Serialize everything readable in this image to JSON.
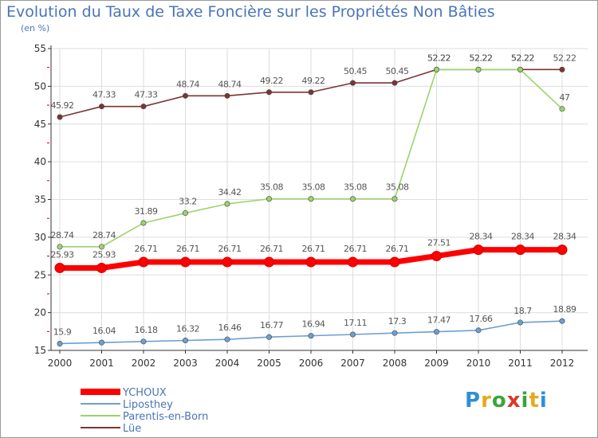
{
  "title": "Evolution du Taux de Taxe Foncière sur les Propriétés Non Bâties",
  "unit": "(en %)",
  "logo": {
    "text": "Proxiti",
    "letters": [
      "P",
      "r",
      "o",
      "x",
      "i",
      "t",
      "i"
    ],
    "colors": [
      "#2e8fd6",
      "#e8a81c",
      "#3aa53a",
      "#d8392b",
      "#3aa53a",
      "#e8a81c",
      "#2e8fd6"
    ]
  },
  "chart_data": {
    "type": "line",
    "title": "Evolution du Taux de Taxe Foncière sur les Propriétés Non Bâties",
    "ylabel": "(en %)",
    "x": [
      "2000",
      "2001",
      "2002",
      "2003",
      "2004",
      "2005",
      "2006",
      "2007",
      "2008",
      "2009",
      "2010",
      "2011",
      "2012"
    ],
    "ylim": [
      15,
      55
    ],
    "yticks": [
      15,
      20,
      25,
      30,
      35,
      40,
      45,
      50,
      55
    ],
    "grid": true,
    "legend_position": "bottom-left",
    "series": [
      {
        "name": "YCHOUX",
        "color": "#ff0000",
        "values": [
          25.93,
          25.93,
          26.71,
          26.71,
          26.71,
          26.71,
          26.71,
          26.71,
          26.71,
          27.51,
          28.34,
          28.34,
          28.34
        ],
        "labels": [
          "25.93",
          "25.93",
          "26.71",
          "26.71",
          "26.71",
          "26.71",
          "26.71",
          "26.71",
          "26.71",
          "27.51",
          "28.34",
          "28.34",
          "28.34"
        ]
      },
      {
        "name": "Liposthey",
        "color": "#6d9fd0",
        "values": [
          15.9,
          16.04,
          16.18,
          16.32,
          16.46,
          16.77,
          16.94,
          17.11,
          17.3,
          17.47,
          17.66,
          18.7,
          18.89
        ],
        "labels": [
          "15.9",
          "16.04",
          "16.18",
          "16.32",
          "16.46",
          "16.77",
          "16.94",
          "17.11",
          "17.3",
          "17.47",
          "17.66",
          "18.7",
          "18.89"
        ]
      },
      {
        "name": "Parentis-en-Born",
        "color": "#9ad46a",
        "values": [
          28.74,
          28.74,
          31.89,
          33.2,
          34.42,
          35.08,
          35.08,
          35.08,
          35.08,
          52.22,
          52.22,
          52.22,
          47
        ],
        "labels": [
          "28.74",
          "28.74",
          "31.89",
          "33.2",
          "34.42",
          "35.08",
          "35.08",
          "35.08",
          "35.08",
          "52.22",
          "52.22",
          "52.22",
          "47"
        ]
      },
      {
        "name": "Lüe",
        "color": "#7a3535",
        "values": [
          45.92,
          47.33,
          47.33,
          48.74,
          48.74,
          49.22,
          49.22,
          50.45,
          50.45,
          52.22,
          52.22,
          52.22,
          52.22
        ],
        "labels": [
          "45.92",
          "47.33",
          "47.33",
          "48.74",
          "48.74",
          "49.22",
          "49.22",
          "50.45",
          "50.45",
          "52.22",
          "52.22",
          "52.22",
          "52.22"
        ]
      }
    ]
  }
}
